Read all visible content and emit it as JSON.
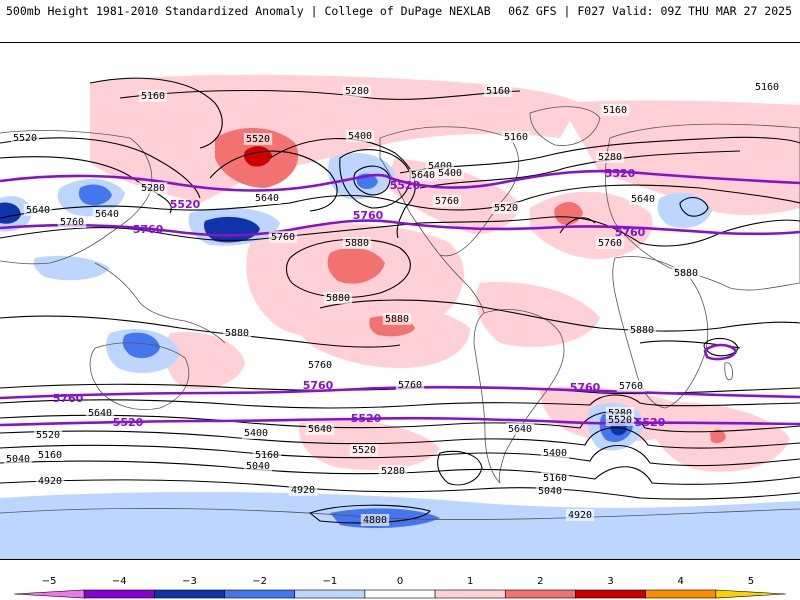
{
  "header": {
    "left": "500mb Height 1981-2010 Standardized Anomaly | College of DuPage NEXLAB",
    "right": "06Z GFS | F027 Valid: 09Z THU MAR 27 2025"
  },
  "colors": {
    "neg5": "#ee77ee",
    "neg4": "#8800cc",
    "neg3": "#1133aa",
    "neg2": "#4477ee",
    "neg1": "#bcd6ff",
    "pos1": "#ffd0d5",
    "pos2": "#f27272",
    "pos3": "#cc0000",
    "pos4": "#ff8c00",
    "pos5": "#ffd000",
    "land": "#555555",
    "contour": "#000000",
    "highlight": "#8811cc"
  },
  "colorbar": {
    "ticks": [
      "−5",
      "−4",
      "−3",
      "−2",
      "−1",
      "0",
      "1",
      "2",
      "3",
      "4",
      "5"
    ]
  },
  "contour_labels": [
    {
      "text": "5160"
    },
    {
      "text": "5280"
    },
    {
      "text": "5160"
    },
    {
      "text": "5160"
    },
    {
      "text": "5160"
    },
    {
      "text": "5520"
    },
    {
      "text": "5520"
    },
    {
      "text": "5400"
    },
    {
      "text": "5160"
    },
    {
      "text": "5400"
    },
    {
      "text": "5280"
    },
    {
      "text": "5280"
    },
    {
      "text": "5400"
    },
    {
      "text": "5640"
    },
    {
      "text": "5640"
    },
    {
      "text": "5640"
    },
    {
      "text": "5640"
    },
    {
      "text": "5640"
    },
    {
      "text": "5760"
    },
    {
      "text": "5760"
    },
    {
      "text": "5760"
    },
    {
      "text": "5520"
    },
    {
      "text": "5760"
    },
    {
      "text": "5880"
    },
    {
      "text": "5880"
    },
    {
      "text": "5880"
    },
    {
      "text": "5880"
    },
    {
      "text": "5880"
    },
    {
      "text": "5880"
    },
    {
      "text": "5760"
    },
    {
      "text": "5760"
    },
    {
      "text": "5760"
    },
    {
      "text": "5640"
    },
    {
      "text": "5640"
    },
    {
      "text": "5640"
    },
    {
      "text": "5520"
    },
    {
      "text": "5520"
    },
    {
      "text": "5400"
    },
    {
      "text": "5400"
    },
    {
      "text": "5280"
    },
    {
      "text": "5280"
    },
    {
      "text": "5160"
    },
    {
      "text": "5160"
    },
    {
      "text": "5160"
    },
    {
      "text": "5040"
    },
    {
      "text": "5040"
    },
    {
      "text": "5040"
    },
    {
      "text": "4920"
    },
    {
      "text": "4920"
    },
    {
      "text": "4920"
    },
    {
      "text": "4800"
    },
    {
      "text": "5520"
    }
  ],
  "highlight_labels": [
    {
      "text": "5520"
    },
    {
      "text": "5520"
    },
    {
      "text": "5520"
    },
    {
      "text": "5760"
    },
    {
      "text": "5760"
    },
    {
      "text": "5760"
    },
    {
      "text": "5760"
    },
    {
      "text": "5760"
    },
    {
      "text": "5760"
    },
    {
      "text": "5520"
    },
    {
      "text": "5520"
    },
    {
      "text": "5520"
    }
  ]
}
